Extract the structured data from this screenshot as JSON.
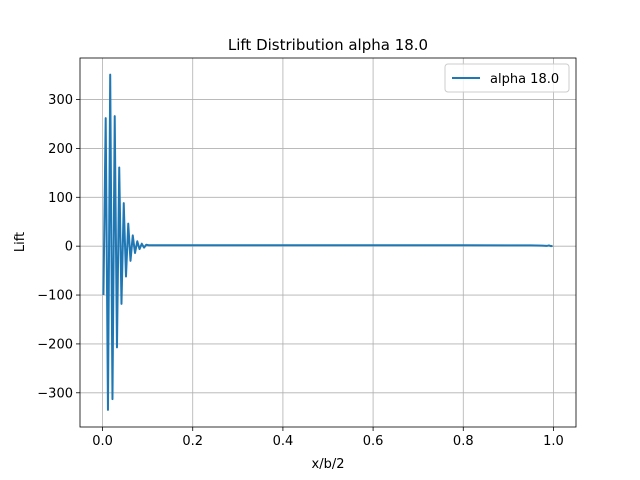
{
  "chart_data": {
    "type": "line",
    "title": "Lift Distribution alpha 18.0",
    "xlabel": "x/b/2",
    "ylabel": "Lift",
    "xlim": [
      -0.05,
      1.05
    ],
    "ylim": [
      -370,
      385
    ],
    "xticks": [
      0.0,
      0.2,
      0.4,
      0.6,
      0.8,
      1.0
    ],
    "xtick_labels": [
      "0.0",
      "0.2",
      "0.4",
      "0.6",
      "0.8",
      "1.0"
    ],
    "yticks": [
      -300,
      -200,
      -100,
      0,
      100,
      200,
      300
    ],
    "ytick_labels": [
      "−300",
      "−200",
      "−100",
      "0",
      "100",
      "200",
      "300"
    ],
    "grid": true,
    "legend_position": "top-right",
    "series": [
      {
        "name": "alpha 18.0",
        "color": "#1f77b4",
        "x": [
          0.002,
          0.007,
          0.012,
          0.017,
          0.022,
          0.027,
          0.032,
          0.037,
          0.042,
          0.047,
          0.052,
          0.057,
          0.062,
          0.067,
          0.072,
          0.077,
          0.082,
          0.087,
          0.092,
          0.097,
          0.102,
          0.11,
          0.12,
          0.15,
          0.2,
          0.3,
          0.4,
          0.5,
          0.6,
          0.7,
          0.8,
          0.9,
          0.95,
          0.975,
          0.985,
          0.99,
          0.995,
          0.998
        ],
        "y": [
          -100,
          262,
          -335,
          351,
          -313,
          266,
          -207,
          161,
          -118,
          88,
          -62,
          46,
          -30,
          22,
          -14,
          10,
          -6,
          5,
          -3,
          3,
          2,
          2,
          2,
          2,
          2,
          2,
          2,
          2,
          2,
          2,
          2,
          1.5,
          1.5,
          1,
          0.5,
          1.5,
          0,
          0.5
        ]
      }
    ]
  }
}
